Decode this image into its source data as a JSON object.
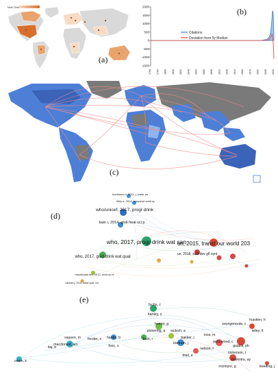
{
  "panels": {
    "a": {
      "label": "(a)",
      "legend_title": "Total Citations",
      "colors": {
        "land": "#d9d9d9",
        "low": "#f6dcc4",
        "mid": "#e9a46e",
        "high": "#d86f2b",
        "ocean": "#ffffff"
      }
    },
    "b": {
      "label": "(b)",
      "series": [
        "Citations",
        "Deviation from 5y Median"
      ],
      "colors": {
        "citations": "#3b79c9",
        "deviation": "#e24a4a"
      },
      "chart_data": {
        "type": "area",
        "ylim": [
          -1500,
          2000
        ],
        "yticks": [
          "2000",
          "1500",
          "1000",
          "500",
          "0",
          "-500",
          "-1000",
          "-1500"
        ],
        "xticks": [
          "1768",
          "1784",
          "1800",
          "1816",
          "1832",
          "1848",
          "1864",
          "1880",
          "1896",
          "1912",
          "1928",
          "1944",
          "1960",
          "1976",
          "1992",
          "2008",
          "2016"
        ],
        "x": [
          1768,
          1800,
          1850,
          1900,
          1950,
          1980,
          1995,
          2005,
          2010,
          2013,
          2015,
          2016,
          2017,
          2018,
          2019,
          2020
        ],
        "series": [
          {
            "name": "Citations",
            "values": [
              0,
              0,
              0,
              0,
              0,
              2,
              10,
              60,
              180,
              420,
              900,
              1300,
              1700,
              1750,
              1400,
              200
            ]
          },
          {
            "name": "Deviation from 5y Median",
            "values": [
              0,
              0,
              0,
              0,
              0,
              0,
              3,
              20,
              60,
              150,
              300,
              380,
              320,
              80,
              -300,
              -1100
            ]
          }
        ]
      }
    },
    "c": {
      "label": "(c)",
      "colors": {
        "ocean": "#ffffff",
        "land_dark": "#4d7fd6",
        "land_light": "#8fb5ea",
        "grey": "#7a7a7a",
        "flow": "#f08c8c"
      }
    },
    "d": {
      "label": "(d)",
      "nodes": [
        {
          "text": "hueristoni n, 2011, j. water sa",
          "c": "#4a90d9",
          "s": 4
        },
        {
          "text": "tilley e, 2014, compend sanit sy",
          "c": "#4a90d9",
          "s": 4
        },
        {
          "text": "who/unicef, 2017, progr drink",
          "c": "#2f6fc2",
          "s": 6.5
        },
        {
          "text": "bain r, 2014, glob heal sci p",
          "c": "#3c8ed0",
          "s": 5.5
        },
        {
          "text": "who, 2017, progr drink wat san",
          "c": "#2aa36a",
          "s": 8.5
        },
        {
          "text": "un, 2015, transf our world 203",
          "c": "#d64a3a",
          "s": 8
        },
        {
          "text": "who, 2017, guid drink wat qual",
          "c": "#4caa55",
          "s": 6
        },
        {
          "text": "un, 2018, sust dev g6 synt",
          "c": "#c03c3c",
          "s": 5
        },
        {
          "text": "macdonald am, 2012, environ re",
          "c": "#9ac23c",
          "s": 4
        },
        {
          "text": "bartram j, 2014, water qual, v11",
          "c": "#e3a93a",
          "s": 3.5
        }
      ]
    },
    "e": {
      "label": "(e)",
      "nodes": [
        {
          "text": "fuchs, c",
          "c": "#2aa36a"
        },
        {
          "text": "hartley, s",
          "c": "#2aa36a"
        },
        {
          "text": "hunter, g",
          "c": "#6dbe45"
        },
        {
          "text": "pickering, a",
          "c": "#6dbe45"
        },
        {
          "text": "wulsch, a",
          "c": "#9ac23c"
        },
        {
          "text": "bakker, j",
          "c": "#9ac23c"
        },
        {
          "text": "huisken, h",
          "c": "#d64a3a"
        },
        {
          "text": "zeyngenoute, c",
          "c": "#d64a3a"
        },
        {
          "text": "wiley, it",
          "c": "#d64a3a"
        },
        {
          "text": "bartram, j",
          "c": "#3c8ed0"
        },
        {
          "text": "ross, m",
          "c": "#3c8ed0"
        },
        {
          "text": "bain, r",
          "c": "#4caa55"
        },
        {
          "text": "hardin, b",
          "c": "#2f6fc2"
        },
        {
          "text": "saasen, m",
          "c": "#3ab0c6"
        },
        {
          "text": "macdonald, am",
          "c": "#3ab0c6"
        },
        {
          "text": "forster, s",
          "c": "#3ab0c6"
        },
        {
          "text": "kaj, b",
          "c": "#3ab0c6"
        },
        {
          "text": "pehl-wood, c",
          "c": "#e05a5a"
        },
        {
          "text": "nelson, t",
          "c": "#e05a5a"
        },
        {
          "text": "guiack, ph",
          "c": "#d64a3a"
        },
        {
          "text": "nickerson, t",
          "c": "#d64a3a"
        },
        {
          "text": "hoekstra, ay",
          "c": "#d64a3a"
        },
        {
          "text": "mcintyre, g",
          "c": "#e05a5a"
        },
        {
          "text": "thiel, e",
          "c": "#e05a5a"
        },
        {
          "text": "boeding, j",
          "c": "#d64a3a"
        },
        {
          "text": "owen, k",
          "c": "#3ab0c6"
        },
        {
          "text": "fooc, s",
          "c": "#3c8ed0"
        }
      ]
    }
  }
}
